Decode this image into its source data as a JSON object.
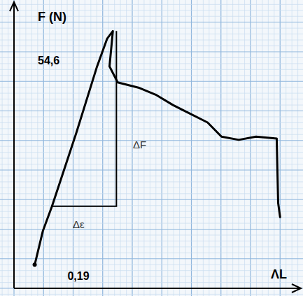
{
  "chart_data": {
    "type": "line",
    "y_label": "F (N)",
    "x_label": "ΛL",
    "annotations": [
      "54,6",
      "0,19",
      "ΔF",
      "Δε"
    ],
    "x": [
      0.073,
      0.102,
      0.134,
      0.22,
      0.293,
      0.329,
      0.349,
      0.337,
      0.366,
      0.439,
      0.5,
      0.561,
      0.61,
      0.683,
      0.732,
      0.793,
      0.854,
      0.927,
      0.932,
      0.939
    ],
    "values": [
      5.0,
      12.2,
      17.4,
      33.0,
      47.1,
      53.0,
      54.6,
      47.1,
      43.7,
      42.6,
      41.1,
      38.9,
      37.4,
      35.2,
      32.2,
      31.5,
      32.2,
      31.8,
      18.1,
      15.1
    ],
    "xlim": [
      0,
      1
    ],
    "ylim": [
      0,
      60
    ],
    "color": "#000000",
    "grid": true,
    "tick_labels": false
  }
}
